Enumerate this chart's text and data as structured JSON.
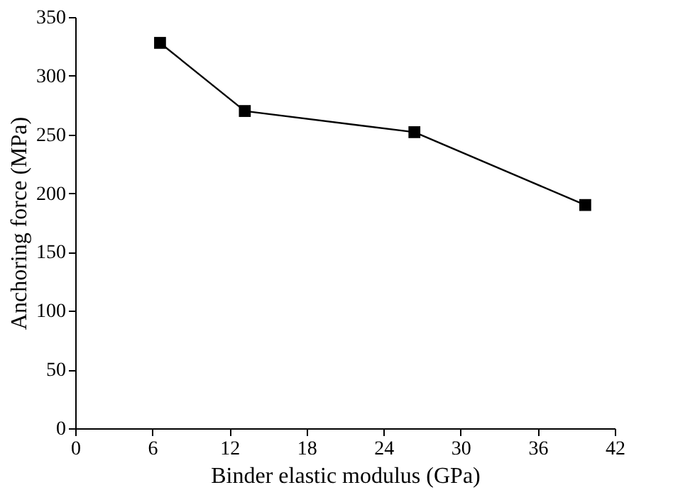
{
  "chart_data": {
    "type": "line",
    "xlabel": "Binder elastic modulus (GPa)",
    "ylabel": "Anchoring force (MPa)",
    "x": [
      6.6,
      13.2,
      26.4,
      39.7
    ],
    "series": [
      {
        "color": "#000000",
        "values": [
          328,
          270,
          252,
          190
        ]
      }
    ],
    "xlim": [
      0,
      42
    ],
    "xticks": [
      0,
      6,
      12,
      18,
      24,
      30,
      36,
      42
    ],
    "ylim": [
      0,
      350
    ],
    "yticks": [
      0,
      50,
      100,
      150,
      200,
      250,
      300,
      350
    ],
    "grid": false,
    "legend": false,
    "marker": "square",
    "line_style": "solid"
  }
}
